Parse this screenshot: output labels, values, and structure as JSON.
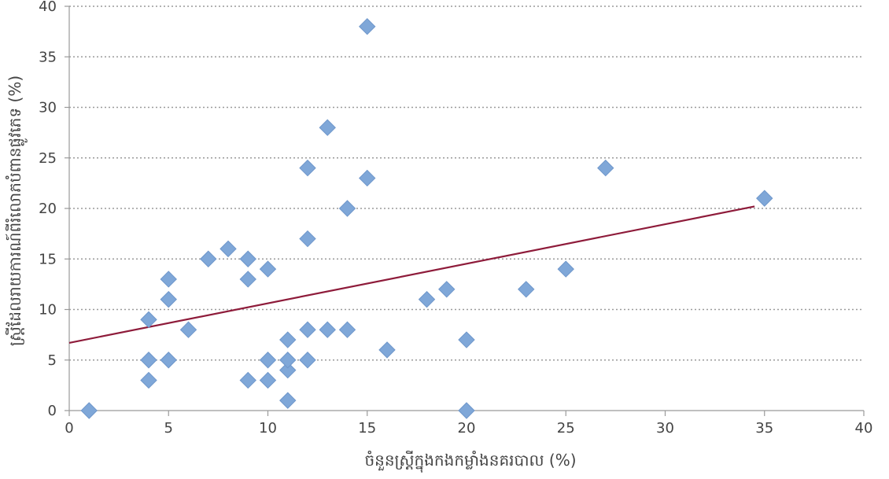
{
  "chart_data": {
    "type": "scatter",
    "title": "",
    "xlabel": "ចំនួនស្ត្រីក្នុងកងកម្លាំងនគរបាល (%)",
    "ylabel": "ស្ត្រីដែលរាយការណ៍ពីរំលោភបំពានផ្លូវភេទ (%)",
    "xlim": [
      0,
      40
    ],
    "ylim": [
      0,
      40
    ],
    "xticks": [
      "0",
      "5",
      "10",
      "15",
      "20",
      "25",
      "30",
      "35",
      "40"
    ],
    "yticks": [
      "0",
      "5",
      "10",
      "15",
      "20",
      "25",
      "30",
      "35",
      "40"
    ],
    "grid": "horizontal dotted",
    "series": [
      {
        "marker": "diamond",
        "color": "#7fa7d8",
        "points": [
          {
            "x": 1,
            "y": 0
          },
          {
            "x": 4,
            "y": 3
          },
          {
            "x": 4,
            "y": 5
          },
          {
            "x": 4,
            "y": 9
          },
          {
            "x": 5,
            "y": 5
          },
          {
            "x": 5,
            "y": 11
          },
          {
            "x": 5,
            "y": 13
          },
          {
            "x": 6,
            "y": 8
          },
          {
            "x": 7,
            "y": 15
          },
          {
            "x": 8,
            "y": 16
          },
          {
            "x": 9,
            "y": 3
          },
          {
            "x": 9,
            "y": 13
          },
          {
            "x": 9,
            "y": 15
          },
          {
            "x": 10,
            "y": 3
          },
          {
            "x": 10,
            "y": 5
          },
          {
            "x": 10,
            "y": 14
          },
          {
            "x": 11,
            "y": 1
          },
          {
            "x": 11,
            "y": 4
          },
          {
            "x": 11,
            "y": 5
          },
          {
            "x": 11,
            "y": 7
          },
          {
            "x": 12,
            "y": 5
          },
          {
            "x": 12,
            "y": 8
          },
          {
            "x": 12,
            "y": 17
          },
          {
            "x": 12,
            "y": 24
          },
          {
            "x": 13,
            "y": 8
          },
          {
            "x": 13,
            "y": 28
          },
          {
            "x": 14,
            "y": 8
          },
          {
            "x": 14,
            "y": 20
          },
          {
            "x": 15,
            "y": 23
          },
          {
            "x": 15,
            "y": 38
          },
          {
            "x": 16,
            "y": 6
          },
          {
            "x": 18,
            "y": 11
          },
          {
            "x": 19,
            "y": 12
          },
          {
            "x": 20,
            "y": 0
          },
          {
            "x": 20,
            "y": 7
          },
          {
            "x": 23,
            "y": 12
          },
          {
            "x": 25,
            "y": 14
          },
          {
            "x": 27,
            "y": 24
          },
          {
            "x": 35,
            "y": 21
          }
        ]
      }
    ],
    "trendline": {
      "color": "#8e1b3a",
      "x": [
        0,
        34.5
      ],
      "y": [
        6.7,
        20.2
      ]
    }
  }
}
